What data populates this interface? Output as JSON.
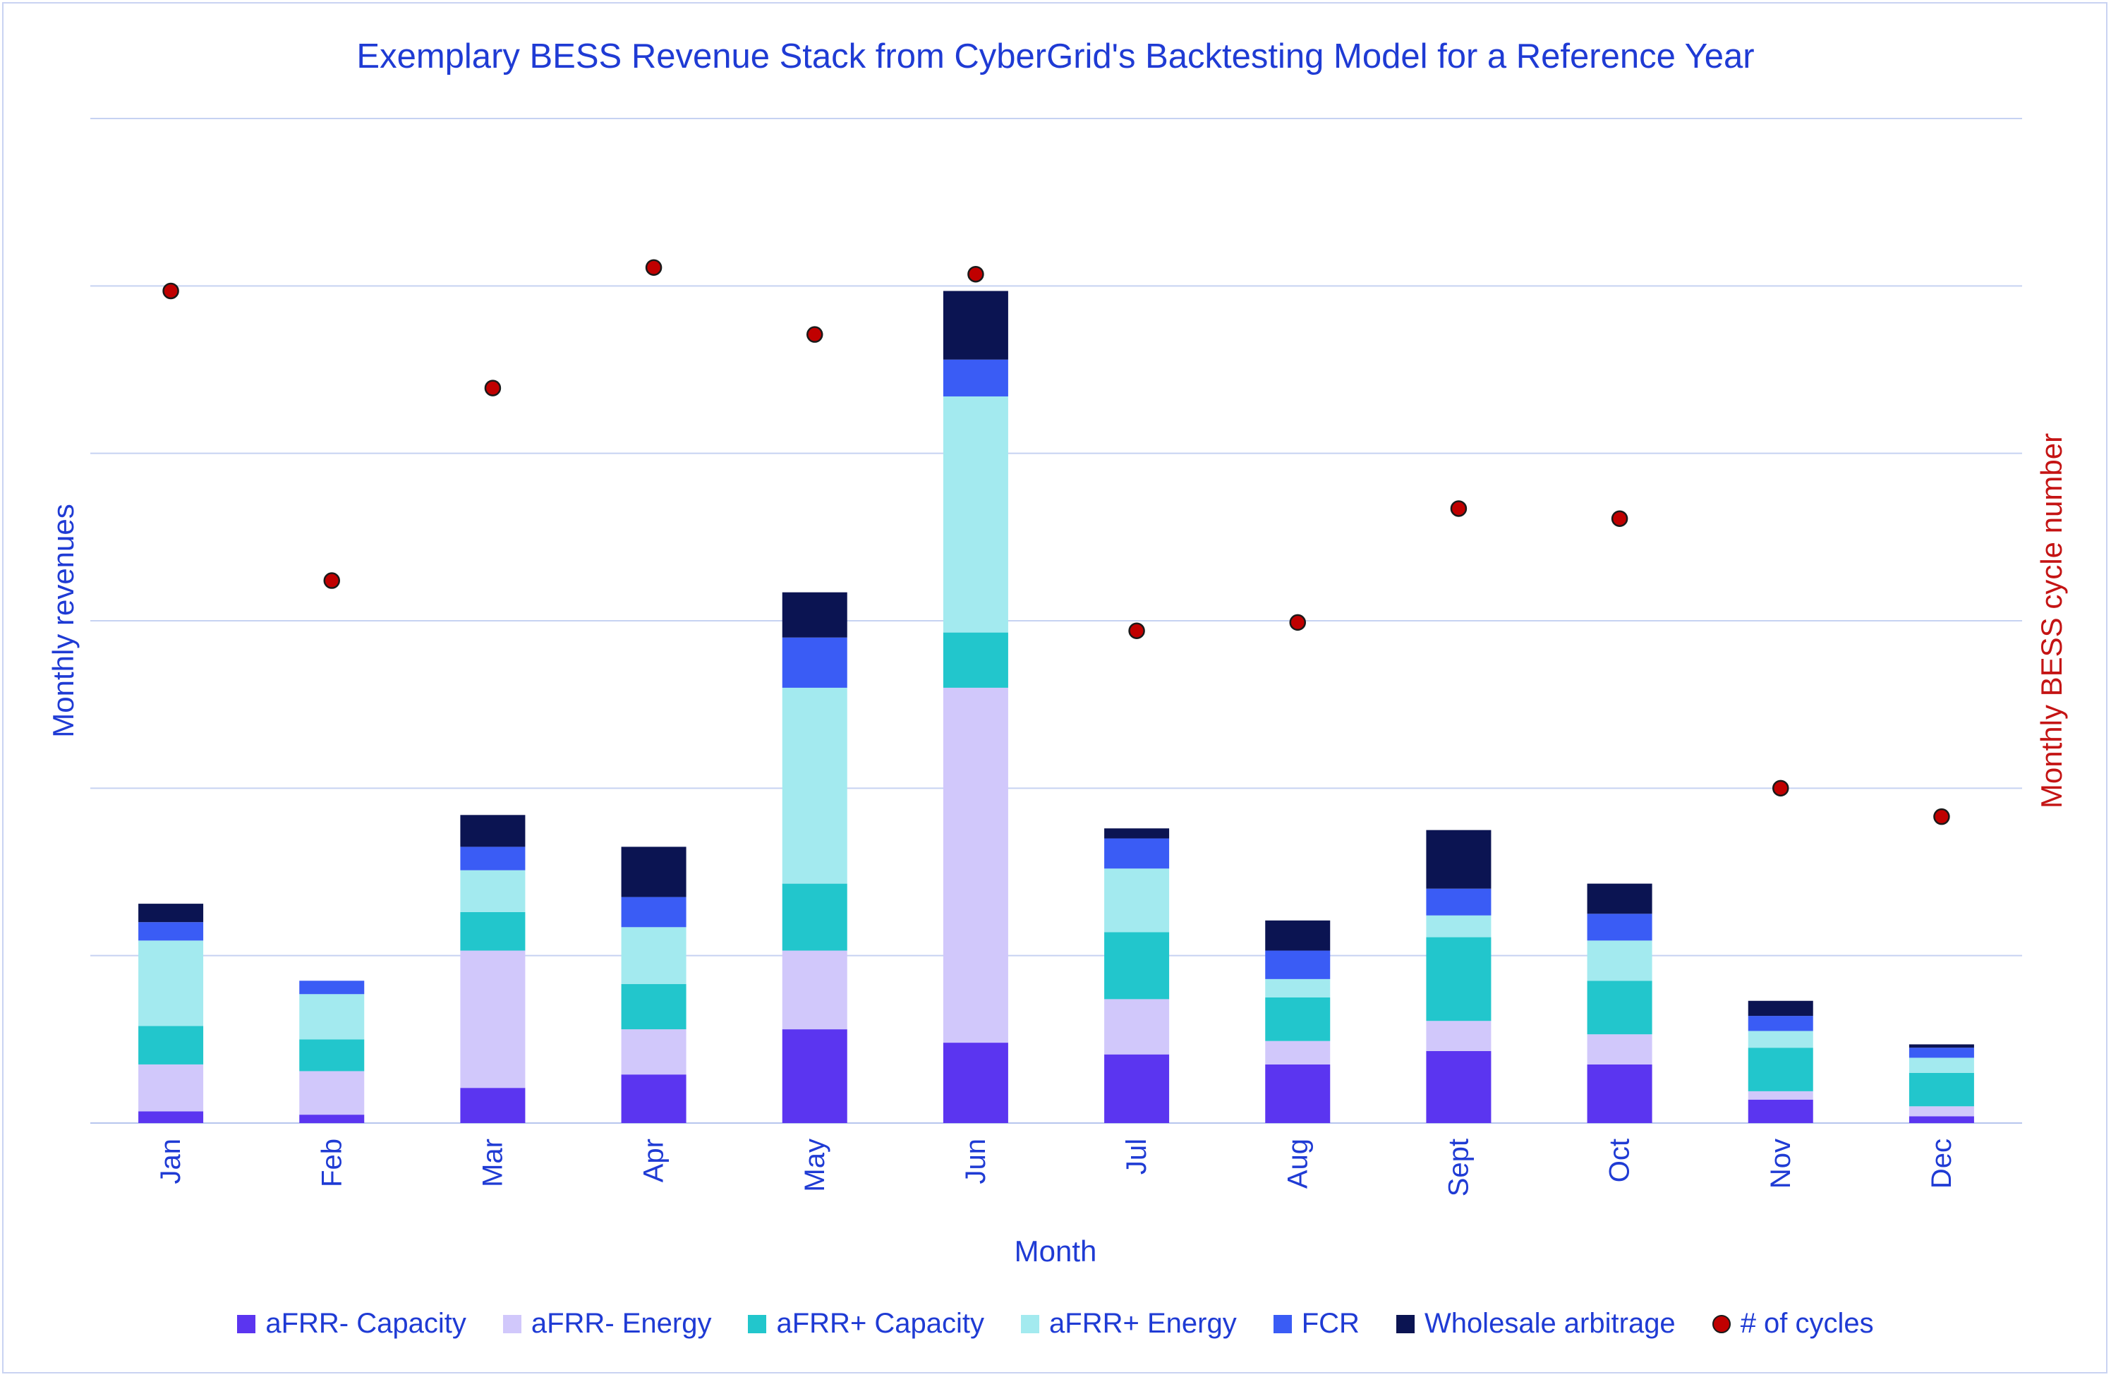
{
  "chart_data": {
    "type": "bar",
    "title": "Exemplary BESS Revenue Stack from CyberGrid's Backtesting Model for a Reference Year",
    "xlabel": "Month",
    "ylabel": "Monthly revenues",
    "y2label": "Monthly BESS cycle number",
    "categories": [
      "Jan",
      "Feb",
      "Mar",
      "Apr",
      "May",
      "Jun",
      "Jul",
      "Aug",
      "Sept",
      "Oct",
      "Nov",
      "Dec"
    ],
    "ylim": [
      0,
      6
    ],
    "y2lim": [
      0,
      6
    ],
    "grid": true,
    "legend_position": "bottom",
    "stacked": true,
    "series": [
      {
        "name": "aFRR- Capacity",
        "color": "#5b35f0",
        "values": [
          0.07,
          0.05,
          0.21,
          0.29,
          0.56,
          0.48,
          0.41,
          0.35,
          0.43,
          0.35,
          0.14,
          0.04
        ]
      },
      {
        "name": "aFRR- Energy",
        "color": "#d1c8fb",
        "values": [
          0.28,
          0.26,
          0.82,
          0.27,
          0.47,
          2.12,
          0.33,
          0.14,
          0.18,
          0.18,
          0.05,
          0.06
        ]
      },
      {
        "name": "aFRR+ Capacity",
        "color": "#22c6cc",
        "values": [
          0.23,
          0.19,
          0.23,
          0.27,
          0.4,
          0.33,
          0.4,
          0.26,
          0.5,
          0.32,
          0.26,
          0.2
        ]
      },
      {
        "name": "aFRR+ Energy",
        "color": "#a3eaef",
        "values": [
          0.51,
          0.27,
          0.25,
          0.34,
          1.17,
          1.41,
          0.38,
          0.11,
          0.13,
          0.24,
          0.1,
          0.09
        ]
      },
      {
        "name": "FCR",
        "color": "#3a5cf5",
        "values": [
          0.11,
          0.08,
          0.14,
          0.18,
          0.3,
          0.22,
          0.18,
          0.17,
          0.16,
          0.16,
          0.09,
          0.06
        ]
      },
      {
        "name": "Wholesale arbitrage",
        "color": "#0b1452",
        "values": [
          0.11,
          0.0,
          0.19,
          0.3,
          0.27,
          0.41,
          0.06,
          0.18,
          0.35,
          0.18,
          0.09,
          0.02
        ]
      }
    ],
    "line_series": {
      "name": "# of cycles",
      "color": "#c00000",
      "marker": "circle",
      "axis": "right",
      "values": [
        4.97,
        3.24,
        4.39,
        5.11,
        4.71,
        5.07,
        2.94,
        2.99,
        3.67,
        3.61,
        2.0,
        1.83
      ]
    }
  }
}
